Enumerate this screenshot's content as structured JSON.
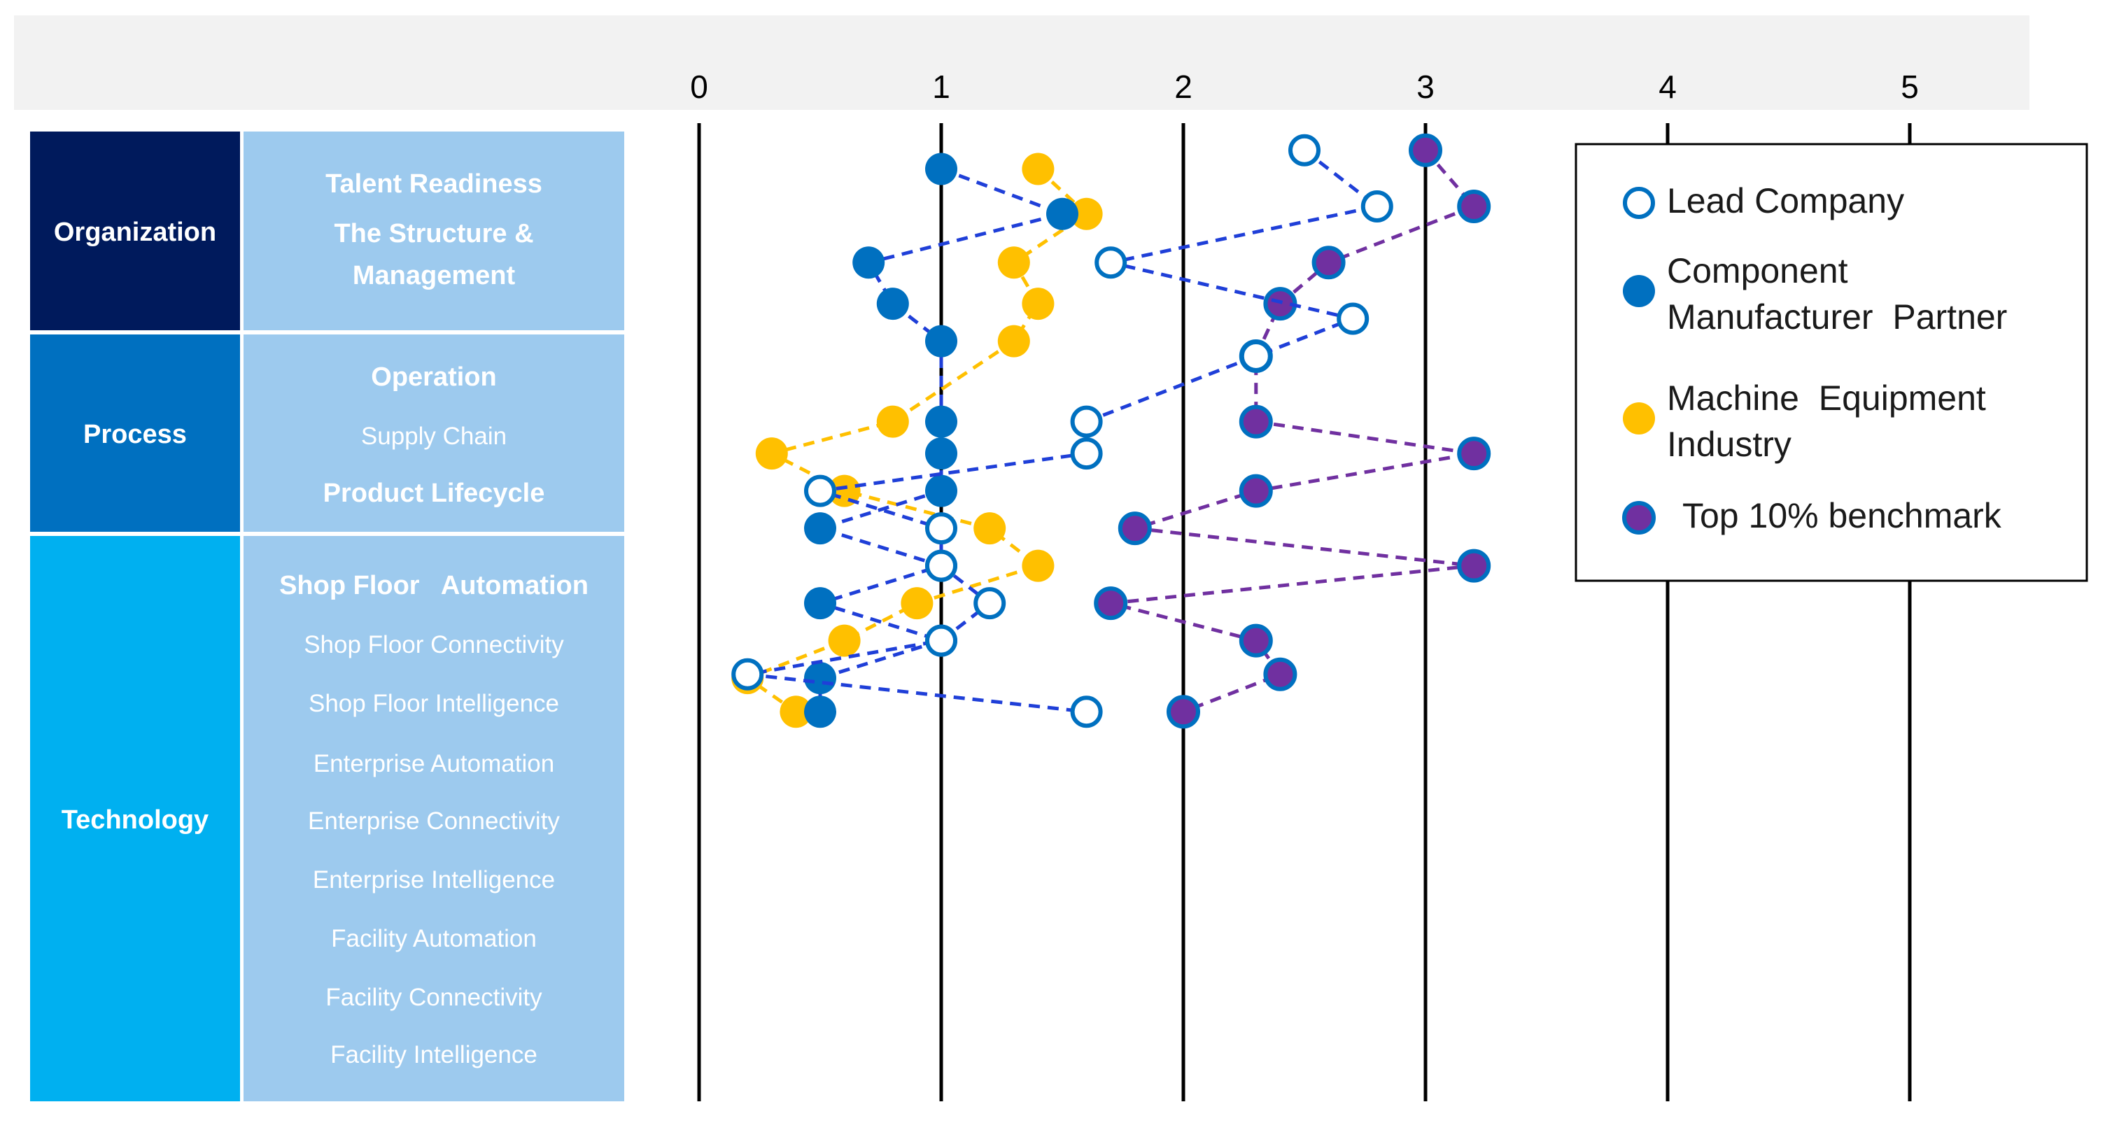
{
  "chart_data": {
    "type": "scatter",
    "orientation": "horizontal-value-axis",
    "x_ticks": [
      "0",
      "1",
      "2",
      "3",
      "4",
      "5"
    ],
    "xlim": [
      0,
      5
    ],
    "categories": [
      {
        "group": "Organization",
        "label": "Talent Readiness",
        "bold": true
      },
      {
        "group": "Organization",
        "label": "The Structure & Management",
        "bold": true
      },
      {
        "group": "Process",
        "label": "Operation",
        "bold": true
      },
      {
        "group": "Process",
        "label": "Supply Chain",
        "bold": false
      },
      {
        "group": "Process",
        "label": "Product Lifecycle",
        "bold": true
      },
      {
        "group": "Technology",
        "label": "Shop Floor   Automation",
        "bold": true
      },
      {
        "group": "Technology",
        "label": "Shop Floor Connectivity",
        "bold": false
      },
      {
        "group": "Technology",
        "label": "Shop Floor Intelligence",
        "bold": false
      },
      {
        "group": "Technology",
        "label": "Enterprise Automation",
        "bold": false
      },
      {
        "group": "Technology",
        "label": "Enterprise Connectivity",
        "bold": false
      },
      {
        "group": "Technology",
        "label": "Enterprise Intelligence",
        "bold": false
      },
      {
        "group": "Technology",
        "label": "Facility Automation",
        "bold": false
      },
      {
        "group": "Technology",
        "label": "Facility Connectivity",
        "bold": false
      },
      {
        "group": "Technology",
        "label": "Facility Intelligence",
        "bold": false
      }
    ],
    "groups": [
      {
        "name": "Organization",
        "color": "#001a5c"
      },
      {
        "name": "Process",
        "color": "#0070c0"
      },
      {
        "name": "Technology",
        "color": "#00b0f0"
      }
    ],
    "series": [
      {
        "name": "Lead Company",
        "style": "hollow",
        "color": "#0070c0",
        "line_color": "#1f3fd8",
        "points": [
          [
            2.5,
            0.5
          ],
          [
            2.8,
            2
          ],
          [
            1.7,
            3.5
          ],
          [
            2.7,
            5.0
          ],
          [
            2.3,
            6.0
          ],
          [
            1.6,
            7.75
          ],
          [
            1.6,
            8.6
          ],
          [
            0.5,
            9.6
          ],
          [
            1.0,
            10.6
          ],
          [
            1.0,
            11.6
          ],
          [
            1.2,
            12.6
          ],
          [
            1.0,
            13.6
          ],
          [
            0.2,
            14.5
          ],
          [
            1.6,
            15.5
          ]
        ]
      },
      {
        "name": "Component Manufacturer Partner",
        "style": "filled",
        "color": "#0070c0",
        "line_color": "#1f3fd8",
        "points": [
          [
            1.0,
            1.0
          ],
          [
            1.5,
            2.2
          ],
          [
            0.7,
            3.5
          ],
          [
            0.8,
            4.6
          ],
          [
            1.0,
            5.6
          ],
          [
            1.0,
            7.75
          ],
          [
            1.0,
            8.6
          ],
          [
            1.0,
            9.6
          ],
          [
            0.5,
            10.6
          ],
          [
            1.0,
            11.6
          ],
          [
            0.5,
            12.6
          ],
          [
            1.0,
            13.6
          ],
          [
            0.5,
            14.6
          ],
          [
            0.5,
            15.5
          ]
        ]
      },
      {
        "name": "Machine Equipment Industry",
        "style": "filled",
        "color": "#ffc000",
        "line_color": "#ffc000",
        "points": [
          [
            1.4,
            1.0
          ],
          [
            1.6,
            2.2
          ],
          [
            1.3,
            3.5
          ],
          [
            1.4,
            4.6
          ],
          [
            1.3,
            5.6
          ],
          [
            0.8,
            7.75
          ],
          [
            0.3,
            8.6
          ],
          [
            0.6,
            9.6
          ],
          [
            1.2,
            10.6
          ],
          [
            1.4,
            11.6
          ],
          [
            0.9,
            12.6
          ],
          [
            0.6,
            13.6
          ],
          [
            0.2,
            14.6
          ],
          [
            0.4,
            15.5
          ]
        ]
      },
      {
        "name": "Top 10% benchmark",
        "style": "filled",
        "color": "#7030a0",
        "line_color": "#7030a0",
        "points": [
          [
            3.0,
            0.5
          ],
          [
            3.2,
            2.0
          ],
          [
            2.6,
            3.5
          ],
          [
            2.4,
            4.6
          ],
          [
            2.3,
            6.0
          ],
          [
            2.3,
            7.75
          ],
          [
            3.2,
            8.6
          ],
          [
            2.3,
            9.6
          ],
          [
            1.8,
            10.6
          ],
          [
            3.2,
            11.6
          ],
          [
            1.7,
            12.6
          ],
          [
            2.3,
            13.6
          ],
          [
            2.4,
            14.5
          ],
          [
            2.0,
            15.5
          ]
        ]
      }
    ],
    "legend": {
      "position": "top-right"
    },
    "title": "",
    "xlabel": "",
    "ylabel": ""
  }
}
